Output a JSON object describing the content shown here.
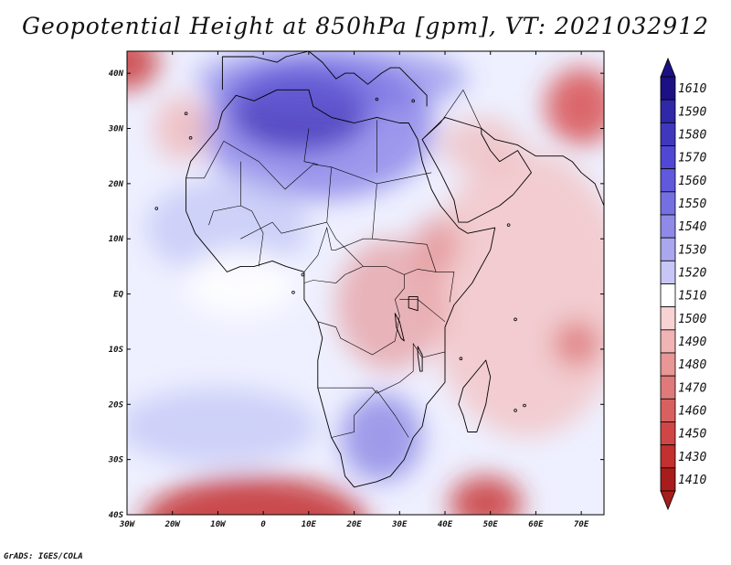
{
  "title": "Geopotential Height at 850hPa [gpm], VT: 2021032912",
  "credit": "GrADS: IGES/COLA",
  "map": {
    "variable": "Geopotential Height",
    "level": "850hPa",
    "units": "gpm",
    "valid_time": "2021032912",
    "lon_range": [
      -30,
      75
    ],
    "lat_range": [
      -40,
      44
    ],
    "lon_ticks": [
      {
        "lon": -30,
        "label": "30W"
      },
      {
        "lon": -20,
        "label": "20W"
      },
      {
        "lon": -10,
        "label": "10W"
      },
      {
        "lon": 0,
        "label": "0"
      },
      {
        "lon": 10,
        "label": "10E"
      },
      {
        "lon": 20,
        "label": "20E"
      },
      {
        "lon": 30,
        "label": "30E"
      },
      {
        "lon": 40,
        "label": "40E"
      },
      {
        "lon": 50,
        "label": "50E"
      },
      {
        "lon": 60,
        "label": "60E"
      },
      {
        "lon": 70,
        "label": "70E"
      }
    ],
    "lat_ticks": [
      {
        "lat": 40,
        "label": "40N"
      },
      {
        "lat": 30,
        "label": "30N"
      },
      {
        "lat": 20,
        "label": "20N"
      },
      {
        "lat": 10,
        "label": "10N"
      },
      {
        "lat": 0,
        "label": "EQ"
      },
      {
        "lat": -10,
        "label": "10S"
      },
      {
        "lat": -20,
        "label": "20S"
      },
      {
        "lat": -30,
        "label": "30S"
      },
      {
        "lat": -40,
        "label": "40S"
      }
    ],
    "background_color": "#eef0ff",
    "regions": [
      {
        "name": "sahara-high",
        "lon": 12,
        "lat": 30,
        "rlon": 26,
        "rlat": 13,
        "color": "#5a50dc",
        "opacity": 0.55
      },
      {
        "name": "sahara-high-core",
        "lon": 8,
        "lat": 33,
        "rlon": 15,
        "rlat": 7,
        "color": "#2a1aa8",
        "opacity": 0.6
      },
      {
        "name": "north-high",
        "lon": 15,
        "lat": 39,
        "rlon": 30,
        "rlat": 6,
        "color": "#6a62e0",
        "opacity": 0.5
      },
      {
        "name": "west-atlantic-band",
        "lon": -8,
        "lat": 12,
        "rlon": 18,
        "rlat": 9,
        "color": "#b9bdf4",
        "opacity": 0.6
      },
      {
        "name": "gulf-guinea-white",
        "lon": -5,
        "lat": 2,
        "rlon": 12,
        "rlat": 6,
        "color": "#ffffff",
        "opacity": 0.9
      },
      {
        "name": "indian-ocean-pink",
        "lon": 58,
        "lat": 0,
        "rlon": 22,
        "rlat": 26,
        "color": "#f3c0c0",
        "opacity": 0.75
      },
      {
        "name": "central-africa-pink",
        "lon": 28,
        "lat": -2,
        "rlon": 12,
        "rlat": 12,
        "color": "#e48a8a",
        "opacity": 0.6
      },
      {
        "name": "ethiopia-pink",
        "lon": 38,
        "lat": 9,
        "rlon": 5,
        "rlat": 5,
        "color": "#e07f7f",
        "opacity": 0.6
      },
      {
        "name": "arabia-pink",
        "lon": 48,
        "lat": 27,
        "rlon": 9,
        "rlat": 5,
        "color": "#f0b9b9",
        "opacity": 0.7
      },
      {
        "name": "iran-low",
        "lon": 70,
        "lat": 34,
        "rlon": 8,
        "rlat": 7,
        "color": "#d43a3a",
        "opacity": 0.75
      },
      {
        "name": "indian-low",
        "lon": 69,
        "lat": -9,
        "rlon": 5,
        "rlat": 4,
        "color": "#d96464",
        "opacity": 0.7
      },
      {
        "name": "south-africa-high",
        "lon": 26,
        "lat": -26,
        "rlon": 9,
        "rlat": 8,
        "color": "#6a63dc",
        "opacity": 0.6
      },
      {
        "name": "south-atlantic-high",
        "lon": -10,
        "lat": -24,
        "rlon": 22,
        "rlat": 7,
        "color": "#b9bdf4",
        "opacity": 0.6
      },
      {
        "name": "south-atlantic-low",
        "lon": -2,
        "lat": -42,
        "rlon": 25,
        "rlat": 9,
        "color": "#c02020",
        "opacity": 0.8
      },
      {
        "name": "indian-south-low",
        "lon": 49,
        "lat": -38,
        "rlon": 8,
        "rlat": 5,
        "color": "#c62a2a",
        "opacity": 0.8
      },
      {
        "name": "northwest-low",
        "lon": -30,
        "lat": 42,
        "rlon": 7,
        "rlat": 5,
        "color": "#c62a2a",
        "opacity": 0.8
      },
      {
        "name": "canary-pink",
        "lon": -18,
        "lat": 30,
        "rlon": 6,
        "rlat": 6,
        "color": "#f0b0b0",
        "opacity": 0.7
      }
    ],
    "coastline": [
      [
        -17,
        21
      ],
      [
        -16,
        24
      ],
      [
        -13,
        27
      ],
      [
        -10,
        30
      ],
      [
        -9,
        33
      ],
      [
        -6,
        36
      ],
      [
        -2,
        35
      ],
      [
        3,
        37
      ],
      [
        10,
        37
      ],
      [
        11,
        34
      ],
      [
        15,
        32
      ],
      [
        20,
        31
      ],
      [
        25,
        32
      ],
      [
        30,
        31
      ],
      [
        32,
        31
      ],
      [
        34,
        28
      ],
      [
        35,
        24
      ],
      [
        37,
        19
      ],
      [
        39,
        16
      ],
      [
        43,
        12
      ],
      [
        45,
        11
      ],
      [
        51,
        12
      ],
      [
        50,
        8
      ],
      [
        46,
        2
      ],
      [
        42,
        -2
      ],
      [
        40,
        -6
      ],
      [
        40,
        -11
      ],
      [
        40,
        -16
      ],
      [
        36,
        -20
      ],
      [
        35,
        -24
      ],
      [
        33,
        -26
      ],
      [
        31,
        -30
      ],
      [
        28,
        -33
      ],
      [
        25,
        -34
      ],
      [
        20,
        -35
      ],
      [
        18,
        -33
      ],
      [
        17,
        -29
      ],
      [
        15,
        -26
      ],
      [
        14,
        -23
      ],
      [
        12,
        -17
      ],
      [
        12,
        -12
      ],
      [
        13,
        -8
      ],
      [
        12,
        -5
      ],
      [
        9,
        -1
      ],
      [
        9,
        3
      ],
      [
        9,
        4
      ],
      [
        5,
        5
      ],
      [
        2,
        6
      ],
      [
        -2,
        5
      ],
      [
        -5,
        5
      ],
      [
        -8,
        4
      ],
      [
        -11,
        7
      ],
      [
        -13,
        9
      ],
      [
        -15,
        11
      ],
      [
        -17,
        15
      ],
      [
        -17,
        21
      ]
    ],
    "madagascar": [
      [
        49,
        -12
      ],
      [
        50,
        -15
      ],
      [
        49,
        -20
      ],
      [
        47,
        -25
      ],
      [
        45,
        -25
      ],
      [
        44,
        -22
      ],
      [
        43,
        -20
      ],
      [
        44,
        -17
      ],
      [
        46,
        -15
      ],
      [
        48,
        -13
      ],
      [
        49,
        -12
      ]
    ],
    "arabia": [
      [
        35,
        28
      ],
      [
        39,
        22
      ],
      [
        42,
        17
      ],
      [
        43,
        13
      ],
      [
        45,
        13
      ],
      [
        52,
        16
      ],
      [
        55,
        18
      ],
      [
        59,
        22
      ],
      [
        56,
        26
      ],
      [
        52,
        24
      ],
      [
        50,
        26
      ],
      [
        48,
        29
      ],
      [
        48,
        30
      ],
      [
        40,
        32
      ],
      [
        35,
        28
      ]
    ],
    "europe_coast": [
      [
        -9,
        37
      ],
      [
        -9,
        43
      ],
      [
        -2,
        43
      ],
      [
        3,
        42
      ],
      [
        5,
        43
      ],
      [
        10,
        44
      ],
      [
        13,
        42
      ],
      [
        16,
        39
      ],
      [
        18,
        40
      ],
      [
        20,
        40
      ],
      [
        23,
        38
      ],
      [
        26,
        40
      ],
      [
        28,
        41
      ],
      [
        30,
        41
      ],
      [
        36,
        36
      ],
      [
        36,
        34
      ]
    ],
    "iran_coast": [
      [
        48,
        30
      ],
      [
        51,
        28
      ],
      [
        56,
        27
      ],
      [
        60,
        25
      ],
      [
        66,
        25
      ],
      [
        68,
        24
      ],
      [
        70,
        22
      ],
      [
        73,
        20
      ],
      [
        75,
        16
      ]
    ],
    "lakes": [
      {
        "name": "lake-victoria",
        "points": [
          [
            32,
            -0.5
          ],
          [
            34,
            -0.5
          ],
          [
            34,
            -3
          ],
          [
            32,
            -2.5
          ],
          [
            32,
            -0.5
          ]
        ]
      },
      {
        "name": "lake-tanganyika",
        "points": [
          [
            29,
            -3.5
          ],
          [
            30,
            -5
          ],
          [
            31,
            -8.5
          ],
          [
            30.3,
            -8
          ],
          [
            29.3,
            -6
          ],
          [
            29,
            -3.5
          ]
        ]
      },
      {
        "name": "lake-malawi",
        "points": [
          [
            34,
            -9.5
          ],
          [
            35,
            -11
          ],
          [
            35,
            -14
          ],
          [
            34.5,
            -14
          ],
          [
            34,
            -11
          ],
          [
            34,
            -9.5
          ]
        ]
      }
    ],
    "borders": [
      [
        [
          -8.7,
          27.7
        ],
        [
          -1,
          24
        ],
        [
          4.8,
          19
        ],
        [
          11,
          23.5
        ],
        [
          15,
          23
        ]
      ],
      [
        [
          -5,
          10
        ],
        [
          2,
          13
        ],
        [
          4,
          11
        ],
        [
          14,
          13
        ],
        [
          15,
          23
        ]
      ],
      [
        [
          25,
          22
        ],
        [
          25,
          31.5
        ]
      ],
      [
        [
          15,
          23
        ],
        [
          25,
          20
        ],
        [
          37,
          22
        ]
      ],
      [
        [
          25,
          20
        ],
        [
          24,
          10
        ],
        [
          36,
          9
        ],
        [
          38,
          4
        ],
        [
          42,
          4
        ],
        [
          41,
          -1.5
        ]
      ],
      [
        [
          14,
          13
        ],
        [
          16,
          10
        ],
        [
          22,
          5
        ],
        [
          27,
          5
        ],
        [
          31,
          3.5
        ],
        [
          34,
          4.5
        ],
        [
          38,
          4
        ]
      ],
      [
        [
          9,
          2
        ],
        [
          11,
          2.5
        ],
        [
          16,
          2
        ],
        [
          18,
          3.5
        ],
        [
          22,
          5
        ]
      ],
      [
        [
          12,
          -5
        ],
        [
          16,
          -6
        ],
        [
          17,
          -8
        ],
        [
          24,
          -11
        ],
        [
          29,
          -8.5
        ],
        [
          30,
          -4
        ],
        [
          29,
          -1
        ],
        [
          31,
          1
        ],
        [
          31,
          3.5
        ]
      ],
      [
        [
          12,
          -17
        ],
        [
          24,
          -17
        ],
        [
          25,
          -18
        ],
        [
          30,
          -16
        ],
        [
          33,
          -14
        ],
        [
          33,
          -9
        ],
        [
          35,
          -11.5
        ],
        [
          40,
          -10.5
        ]
      ],
      [
        [
          15,
          -26
        ],
        [
          20,
          -25
        ],
        [
          20,
          -22
        ],
        [
          25,
          -17.5
        ],
        [
          29,
          -22
        ],
        [
          32,
          -26
        ]
      ],
      [
        [
          30,
          -1
        ],
        [
          34,
          -1
        ],
        [
          37,
          -3
        ],
        [
          40,
          -5
        ]
      ],
      [
        [
          9,
          4
        ],
        [
          12,
          7
        ],
        [
          14,
          12
        ],
        [
          15,
          8
        ],
        [
          16,
          8
        ],
        [
          22,
          10
        ],
        [
          24,
          10
        ]
      ],
      [
        [
          -1,
          5
        ],
        [
          0,
          11
        ],
        [
          -2.5,
          15
        ],
        [
          -5,
          16
        ]
      ],
      [
        [
          -12,
          12.5
        ],
        [
          -11,
          15
        ],
        [
          -5,
          16
        ],
        [
          -5,
          24
        ]
      ],
      [
        [
          -17,
          21
        ],
        [
          -13,
          21
        ],
        [
          -8.7,
          27.7
        ]
      ],
      [
        [
          35,
          28
        ],
        [
          39,
          31
        ],
        [
          44,
          37
        ],
        [
          48,
          30
        ]
      ],
      [
        [
          10,
          30
        ],
        [
          9,
          24
        ],
        [
          12,
          23.5
        ]
      ]
    ],
    "islands": [
      {
        "name": "canary-islands",
        "lon": -16,
        "lat": 28.3
      },
      {
        "name": "cape-verde",
        "lon": -23.5,
        "lat": 15.5
      },
      {
        "name": "madeira",
        "lon": -17,
        "lat": 32.7
      },
      {
        "name": "sao-tome",
        "lon": 6.6,
        "lat": 0.3
      },
      {
        "name": "bioko",
        "lon": 8.7,
        "lat": 3.5
      },
      {
        "name": "comoros",
        "lon": 43.5,
        "lat": -11.7
      },
      {
        "name": "mauritius",
        "lon": 57.5,
        "lat": -20.2
      },
      {
        "name": "reunion",
        "lon": 55.5,
        "lat": -21.1
      },
      {
        "name": "seychelles",
        "lon": 55.5,
        "lat": -4.6
      },
      {
        "name": "socotra",
        "lon": 54,
        "lat": 12.5
      },
      {
        "name": "cyprus",
        "lon": 33,
        "lat": 35
      },
      {
        "name": "crete",
        "lon": 25,
        "lat": 35.3
      }
    ]
  },
  "colorbar": {
    "levels": [
      {
        "label": "1610",
        "color": "#1c1084"
      },
      {
        "label": "1590",
        "color": "#2f28a8"
      },
      {
        "label": "1580",
        "color": "#4037bf"
      },
      {
        "label": "1570",
        "color": "#5048d4"
      },
      {
        "label": "1560",
        "color": "#6059dc"
      },
      {
        "label": "1550",
        "color": "#7570e2"
      },
      {
        "label": "1540",
        "color": "#8f8ae8"
      },
      {
        "label": "1530",
        "color": "#aaa7ef"
      },
      {
        "label": "1520",
        "color": "#c7c6f6"
      },
      {
        "label": "1510",
        "color": "#ffffff"
      },
      {
        "label": "1500",
        "color": "#f7d3d3"
      },
      {
        "label": "1490",
        "color": "#f0b4b4"
      },
      {
        "label": "1480",
        "color": "#e89696"
      },
      {
        "label": "1470",
        "color": "#e07a7a"
      },
      {
        "label": "1460",
        "color": "#d86060"
      },
      {
        "label": "1450",
        "color": "#d04646"
      },
      {
        "label": "1430",
        "color": "#c23030"
      },
      {
        "label": "1410",
        "color": "#a81c1c"
      }
    ]
  }
}
